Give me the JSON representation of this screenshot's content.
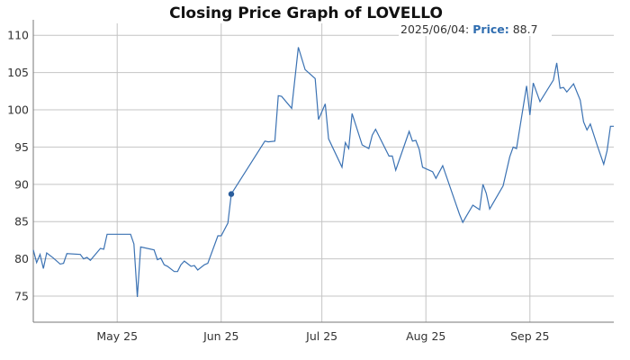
{
  "chart_data": {
    "type": "line",
    "title": "Closing Price Graph of LOVELLO",
    "xlabel": "",
    "ylabel": "",
    "xlim": [
      "2025-04-06",
      "2025-09-26"
    ],
    "ylim": [
      71.5,
      111.6
    ],
    "grid": true,
    "y_ticks": [
      75,
      80,
      85,
      90,
      95,
      100,
      105,
      110
    ],
    "x_ticks": [
      {
        "date": "2025-05-01",
        "label": "May 25"
      },
      {
        "date": "2025-06-01",
        "label": "Jun 25"
      },
      {
        "date": "2025-07-01",
        "label": "Jul 25"
      },
      {
        "date": "2025-08-01",
        "label": "Aug 25"
      },
      {
        "date": "2025-09-01",
        "label": "Sep 25"
      }
    ],
    "line_color": "#3b72b3",
    "series": [
      {
        "name": "Price",
        "points": [
          [
            "2025-04-06",
            81.2
          ],
          [
            "2025-04-07",
            79.5
          ],
          [
            "2025-04-08",
            80.6
          ],
          [
            "2025-04-09",
            78.7
          ],
          [
            "2025-04-10",
            80.8
          ],
          [
            "2025-04-12",
            80.1
          ],
          [
            "2025-04-14",
            79.3
          ],
          [
            "2025-04-15",
            79.4
          ],
          [
            "2025-04-16",
            80.7
          ],
          [
            "2025-04-20",
            80.6
          ],
          [
            "2025-04-21",
            80.0
          ],
          [
            "2025-04-22",
            80.2
          ],
          [
            "2025-04-23",
            79.8
          ],
          [
            "2025-04-26",
            81.4
          ],
          [
            "2025-04-27",
            81.3
          ],
          [
            "2025-04-28",
            83.3
          ],
          [
            "2025-05-05",
            83.3
          ],
          [
            "2025-05-06",
            82.0
          ],
          [
            "2025-05-07",
            74.9
          ],
          [
            "2025-05-08",
            81.6
          ],
          [
            "2025-05-12",
            81.2
          ],
          [
            "2025-05-13",
            79.9
          ],
          [
            "2025-05-14",
            80.1
          ],
          [
            "2025-05-15",
            79.2
          ],
          [
            "2025-05-16",
            79.0
          ],
          [
            "2025-05-18",
            78.3
          ],
          [
            "2025-05-19",
            78.3
          ],
          [
            "2025-05-20",
            79.2
          ],
          [
            "2025-05-21",
            79.7
          ],
          [
            "2025-05-23",
            79.0
          ],
          [
            "2025-05-24",
            79.1
          ],
          [
            "2025-05-25",
            78.5
          ],
          [
            "2025-05-27",
            79.2
          ],
          [
            "2025-05-28",
            79.4
          ],
          [
            "2025-05-31",
            83.1
          ],
          [
            "2025-06-01",
            83.1
          ],
          [
            "2025-06-03",
            84.8
          ],
          [
            "2025-06-04",
            88.7
          ],
          [
            "2025-06-14",
            95.8
          ],
          [
            "2025-06-15",
            95.7
          ],
          [
            "2025-06-17",
            95.8
          ],
          [
            "2025-06-18",
            101.9
          ],
          [
            "2025-06-19",
            101.8
          ],
          [
            "2025-06-22",
            100.2
          ],
          [
            "2025-06-24",
            108.4
          ],
          [
            "2025-06-26",
            105.4
          ],
          [
            "2025-06-29",
            104.2
          ],
          [
            "2025-06-30",
            98.7
          ],
          [
            "2025-07-02",
            100.8
          ],
          [
            "2025-07-03",
            96.1
          ],
          [
            "2025-07-07",
            92.3
          ],
          [
            "2025-07-08",
            95.6
          ],
          [
            "2025-07-09",
            94.8
          ],
          [
            "2025-07-10",
            99.5
          ],
          [
            "2025-07-13",
            95.3
          ],
          [
            "2025-07-15",
            94.8
          ],
          [
            "2025-07-16",
            96.6
          ],
          [
            "2025-07-17",
            97.4
          ],
          [
            "2025-07-21",
            93.8
          ],
          [
            "2025-07-22",
            93.8
          ],
          [
            "2025-07-23",
            91.9
          ],
          [
            "2025-07-27",
            97.1
          ],
          [
            "2025-07-28",
            95.8
          ],
          [
            "2025-07-29",
            95.9
          ],
          [
            "2025-07-30",
            94.7
          ],
          [
            "2025-07-31",
            92.3
          ],
          [
            "2025-08-03",
            91.7
          ],
          [
            "2025-08-04",
            90.8
          ],
          [
            "2025-08-06",
            92.5
          ],
          [
            "2025-08-11",
            86.0
          ],
          [
            "2025-08-12",
            84.9
          ],
          [
            "2025-08-13",
            85.7
          ],
          [
            "2025-08-15",
            87.2
          ],
          [
            "2025-08-17",
            86.6
          ],
          [
            "2025-08-18",
            90.0
          ],
          [
            "2025-08-19",
            88.8
          ],
          [
            "2025-08-20",
            86.7
          ],
          [
            "2025-08-24",
            89.8
          ],
          [
            "2025-08-26",
            93.7
          ],
          [
            "2025-08-27",
            95.0
          ],
          [
            "2025-08-28",
            94.8
          ],
          [
            "2025-08-31",
            103.2
          ],
          [
            "2025-09-01",
            99.3
          ],
          [
            "2025-09-02",
            103.6
          ],
          [
            "2025-09-04",
            101.1
          ],
          [
            "2025-09-08",
            104.0
          ],
          [
            "2025-09-09",
            106.3
          ],
          [
            "2025-09-10",
            102.9
          ],
          [
            "2025-09-11",
            103.0
          ],
          [
            "2025-09-12",
            102.4
          ],
          [
            "2025-09-14",
            103.5
          ],
          [
            "2025-09-16",
            101.3
          ],
          [
            "2025-09-17",
            98.4
          ],
          [
            "2025-09-18",
            97.3
          ],
          [
            "2025-09-19",
            98.1
          ],
          [
            "2025-09-21",
            95.3
          ],
          [
            "2025-09-23",
            92.7
          ],
          [
            "2025-09-24",
            94.5
          ],
          [
            "2025-09-25",
            97.8
          ],
          [
            "2025-09-26",
            97.8
          ]
        ]
      }
    ],
    "highlight": {
      "date": "2025-06-04",
      "value": 88.7
    },
    "tooltip": {
      "date_label": "2025/06/04:",
      "series_label": "Price:",
      "value_label": "88.7"
    }
  }
}
